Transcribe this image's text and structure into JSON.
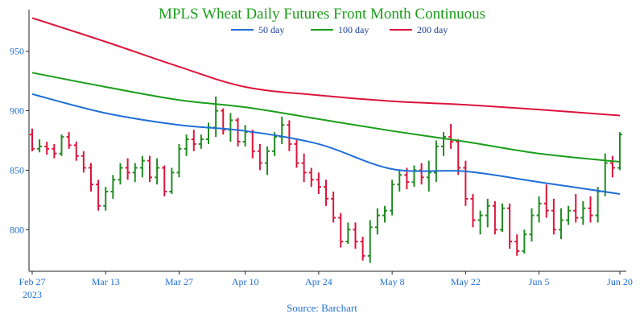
{
  "chart_data": {
    "type": "ohlc",
    "title": "MPLS Wheat Daily Futures Front Month Continuous",
    "source": "Source: Barchart",
    "ylim": [
      765,
      985
    ],
    "yticks": [
      800,
      850,
      900,
      950
    ],
    "xticks": [
      {
        "label": "Feb 27",
        "sublabel": "2023",
        "index": 0
      },
      {
        "label": "Mar 13",
        "index": 10
      },
      {
        "label": "Mar 27",
        "index": 20
      },
      {
        "label": "Apr 10",
        "index": 29
      },
      {
        "label": "Apr 24",
        "index": 39
      },
      {
        "label": "May 8",
        "index": 49
      },
      {
        "label": "May 22",
        "index": 59
      },
      {
        "label": "Jun 5",
        "index": 69
      },
      {
        "label": "Jun 20",
        "index": 80
      }
    ],
    "grid": false,
    "legend": {
      "position": "top-center"
    },
    "colors": {
      "title": "#1a9e1a",
      "up": "#228b22",
      "down": "#dc143c",
      "ma50": "#1f6fd6",
      "ma100": "#1a9e1a",
      "ma200": "#dc143c",
      "axis": "#222222",
      "tick_text": "#1f6fd6"
    },
    "series": [
      {
        "name": "50 day",
        "key": "ma50",
        "x": [
          0,
          10,
          20,
          29,
          39,
          49,
          59,
          69,
          80
        ],
        "y": [
          914,
          898,
          888,
          883,
          872,
          851,
          849,
          840,
          830
        ]
      },
      {
        "name": "100 day",
        "key": "ma100",
        "x": [
          0,
          10,
          20,
          29,
          39,
          49,
          59,
          69,
          80
        ],
        "y": [
          932,
          920,
          909,
          903,
          893,
          883,
          874,
          864,
          857
        ]
      },
      {
        "name": "200 day",
        "key": "ma200",
        "x": [
          0,
          10,
          20,
          29,
          39,
          49,
          59,
          69,
          80
        ],
        "y": [
          978,
          958,
          937,
          920,
          913,
          908,
          905,
          901,
          896
        ]
      }
    ],
    "ohlc": [
      [
        880,
        885,
        866,
        868
      ],
      [
        868,
        876,
        865,
        870
      ],
      [
        870,
        874,
        863,
        868
      ],
      [
        868,
        872,
        860,
        864
      ],
      [
        864,
        880,
        862,
        878
      ],
      [
        878,
        882,
        868,
        871
      ],
      [
        871,
        874,
        858,
        862
      ],
      [
        862,
        866,
        848,
        852
      ],
      [
        852,
        856,
        832,
        838
      ],
      [
        838,
        842,
        816,
        820
      ],
      [
        820,
        836,
        816,
        832
      ],
      [
        832,
        846,
        826,
        842
      ],
      [
        842,
        856,
        838,
        852
      ],
      [
        852,
        860,
        842,
        848
      ],
      [
        848,
        856,
        840,
        852
      ],
      [
        852,
        862,
        844,
        858
      ],
      [
        858,
        862,
        840,
        844
      ],
      [
        844,
        860,
        838,
        852
      ],
      [
        852,
        854,
        828,
        832
      ],
      [
        832,
        852,
        830,
        848
      ],
      [
        848,
        872,
        844,
        868
      ],
      [
        868,
        880,
        862,
        876
      ],
      [
        876,
        884,
        866,
        872
      ],
      [
        872,
        880,
        868,
        876
      ],
      [
        876,
        890,
        872,
        886
      ],
      [
        886,
        912,
        878,
        900
      ],
      [
        900,
        902,
        880,
        884
      ],
      [
        884,
        898,
        874,
        892
      ],
      [
        892,
        894,
        870,
        874
      ],
      [
        874,
        888,
        870,
        882
      ],
      [
        882,
        884,
        860,
        866
      ],
      [
        866,
        872,
        850,
        856
      ],
      [
        856,
        870,
        846,
        866
      ],
      [
        866,
        882,
        862,
        878
      ],
      [
        878,
        895,
        872,
        888
      ],
      [
        888,
        892,
        866,
        872
      ],
      [
        872,
        876,
        852,
        856
      ],
      [
        856,
        864,
        840,
        848
      ],
      [
        848,
        852,
        836,
        842
      ],
      [
        842,
        848,
        830,
        836
      ],
      [
        836,
        842,
        820,
        826
      ],
      [
        826,
        832,
        806,
        810
      ],
      [
        810,
        814,
        785,
        790
      ],
      [
        790,
        806,
        788,
        800
      ],
      [
        800,
        806,
        784,
        790
      ],
      [
        790,
        794,
        774,
        778
      ],
      [
        778,
        808,
        772,
        802
      ],
      [
        802,
        818,
        796,
        812
      ],
      [
        812,
        820,
        806,
        816
      ],
      [
        816,
        842,
        812,
        838
      ],
      [
        838,
        850,
        832,
        846
      ],
      [
        846,
        852,
        834,
        840
      ],
      [
        840,
        854,
        836,
        850
      ],
      [
        850,
        856,
        838,
        844
      ],
      [
        844,
        858,
        832,
        848
      ],
      [
        848,
        875,
        840,
        870
      ],
      [
        870,
        882,
        862,
        878
      ],
      [
        878,
        889,
        868,
        874
      ],
      [
        874,
        876,
        846,
        852
      ],
      [
        852,
        858,
        820,
        826
      ],
      [
        826,
        830,
        802,
        808
      ],
      [
        808,
        816,
        796,
        812
      ],
      [
        812,
        826,
        802,
        820
      ],
      [
        820,
        824,
        796,
        800
      ],
      [
        800,
        822,
        798,
        818
      ],
      [
        818,
        822,
        784,
        790
      ],
      [
        790,
        796,
        778,
        782
      ],
      [
        782,
        800,
        780,
        796
      ],
      [
        796,
        818,
        790,
        812
      ],
      [
        812,
        828,
        806,
        822
      ],
      [
        822,
        838,
        810,
        816
      ],
      [
        816,
        826,
        796,
        800
      ],
      [
        800,
        818,
        792,
        808
      ],
      [
        808,
        820,
        804,
        816
      ],
      [
        816,
        830,
        806,
        810
      ],
      [
        810,
        824,
        804,
        818
      ],
      [
        818,
        828,
        806,
        812
      ],
      [
        812,
        836,
        806,
        832
      ],
      [
        832,
        864,
        828,
        856
      ],
      [
        856,
        862,
        844,
        852
      ],
      [
        852,
        882,
        850,
        880
      ]
    ]
  }
}
